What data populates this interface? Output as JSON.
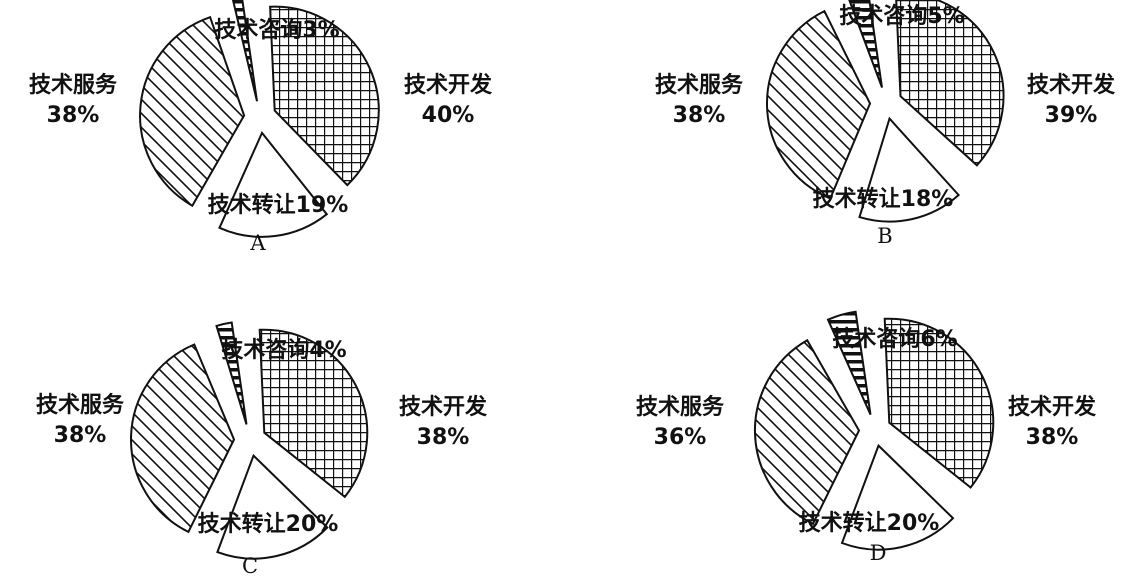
{
  "chart_data": [
    {
      "type": "pie",
      "caption": "A",
      "categories": [
        "技术开发",
        "技术转让",
        "技术服务",
        "技术咨询"
      ],
      "values": [
        40,
        19,
        38,
        3
      ],
      "labels": [
        "技术开发",
        "技术转让19%",
        "技术服务",
        "技术咨询3%"
      ],
      "value_labels": [
        "40%",
        "",
        "38%",
        ""
      ]
    },
    {
      "type": "pie",
      "caption": "B",
      "categories": [
        "技术开发",
        "技术转让",
        "技术服务",
        "技术咨询"
      ],
      "values": [
        39,
        18,
        38,
        5
      ],
      "labels": [
        "技术开发",
        "技术转让18%",
        "技术服务",
        "技术咨询5%"
      ],
      "value_labels": [
        "39%",
        "",
        "38%",
        ""
      ]
    },
    {
      "type": "pie",
      "caption": "C",
      "categories": [
        "技术开发",
        "技术转让",
        "技术服务",
        "技术咨询"
      ],
      "values": [
        38,
        20,
        38,
        4
      ],
      "labels": [
        "技术开发",
        "技术转让20%",
        "技术服务",
        "技术咨询4%"
      ],
      "value_labels": [
        "38%",
        "",
        "38%",
        ""
      ]
    },
    {
      "type": "pie",
      "caption": "D",
      "categories": [
        "技术开发",
        "技术转让",
        "技术服务",
        "技术咨询"
      ],
      "values": [
        38,
        20,
        36,
        6
      ],
      "labels": [
        "技术开发",
        "技术转让20%",
        "技术服务",
        "技术咨询6%"
      ],
      "value_labels": [
        "38%",
        "",
        "36%",
        ""
      ]
    }
  ]
}
